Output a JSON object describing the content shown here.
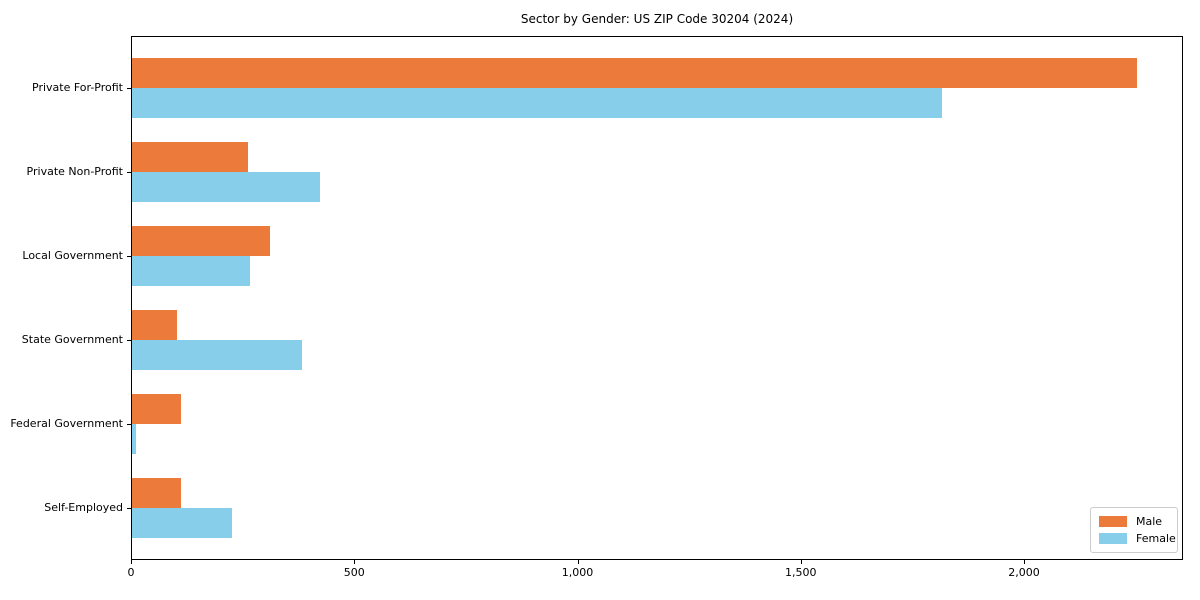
{
  "chart_data": {
    "type": "bar",
    "orientation": "horizontal",
    "title": "Sector by Gender: US ZIP Code 30204 (2024)",
    "categories": [
      "Private For-Profit",
      "Private Non-Profit",
      "Local Government",
      "State Government",
      "Federal Government",
      "Self-Employed"
    ],
    "series": [
      {
        "name": "Male",
        "color": "#EC7A3B",
        "values": [
          2250,
          260,
          310,
          100,
          110,
          110
        ]
      },
      {
        "name": "Female",
        "color": "#87CEEB",
        "values": [
          1815,
          420,
          265,
          380,
          8,
          225
        ]
      }
    ],
    "xlim": [
      0,
      2356
    ],
    "xticks": [
      0,
      500,
      1000,
      1500,
      2000
    ],
    "xtick_labels": [
      "0",
      "500",
      "1,000",
      "1,500",
      "2,000"
    ],
    "xlabel": "",
    "ylabel": "",
    "grid": false,
    "legend": {
      "position": "lower-right",
      "entries": [
        "Male",
        "Female"
      ]
    },
    "axis_color": "#000000",
    "background_color": "#ffffff"
  }
}
